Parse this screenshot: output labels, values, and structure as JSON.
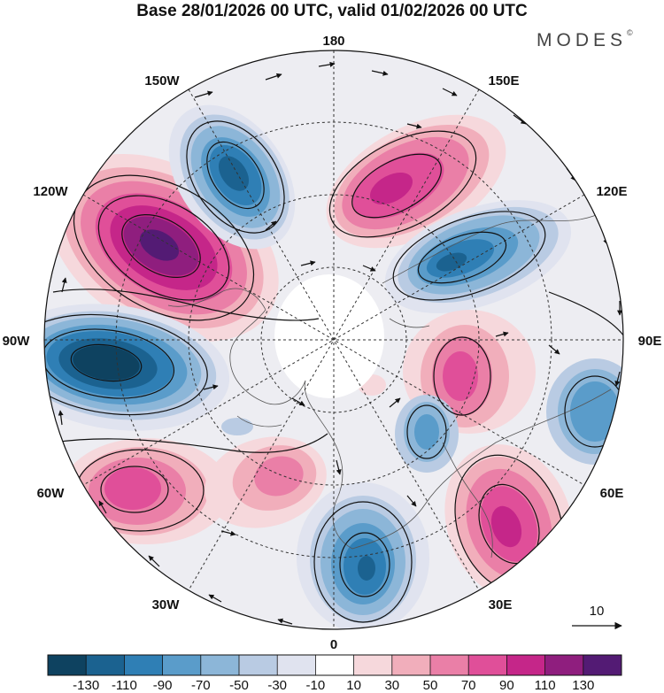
{
  "title": "Base 28/01/2026 00 UTC, valid 01/02/2026 00 UTC",
  "brand": "MODES",
  "brand_mark": "©",
  "longitude_labels": {
    "top": "180",
    "top_left": "150W",
    "top_right": "150E",
    "upper_left": "120W",
    "upper_right": "120E",
    "left": "90W",
    "right": "90E",
    "lower_left": "60W",
    "lower_right": "60E",
    "bottom_left": "30W",
    "bottom_right": "30E",
    "bottom": "0"
  },
  "vector_reference": {
    "value": "10"
  },
  "colorbar": {
    "ticks": [
      "-130",
      "-110",
      "-90",
      "-70",
      "-50",
      "-30",
      "-10",
      "10",
      "30",
      "50",
      "70",
      "90",
      "110",
      "130"
    ],
    "colors": [
      "#0e4260",
      "#1b6290",
      "#2f7fb5",
      "#5a9cca",
      "#8cb6d8",
      "#b9cbe3",
      "#e0e3ef",
      "#ffffff",
      "#f6d8dc",
      "#f1aebb",
      "#ea7fa7",
      "#e04f99",
      "#c52689",
      "#8f1e7e",
      "#531b74"
    ]
  },
  "anomaly_centres": [
    {
      "sign": "positive",
      "value": 130,
      "bearing": "120W"
    },
    {
      "sign": "negative",
      "value": -130,
      "bearing": "90W"
    },
    {
      "sign": "negative",
      "value": -90,
      "bearing": "150W"
    },
    {
      "sign": "positive",
      "value": 90,
      "bearing": "165E"
    },
    {
      "sign": "negative",
      "value": -90,
      "bearing": "120E"
    },
    {
      "sign": "positive",
      "value": 70,
      "bearing": "80E"
    },
    {
      "sign": "negative",
      "value": -70,
      "bearing": "70E"
    },
    {
      "sign": "negative",
      "value": -50,
      "bearing": "45E"
    },
    {
      "sign": "positive",
      "value": 90,
      "bearing": "40E"
    },
    {
      "sign": "negative",
      "value": -90,
      "bearing": "10E"
    },
    {
      "sign": "positive",
      "value": 90,
      "bearing": "55W"
    },
    {
      "sign": "positive",
      "value": 70,
      "bearing": "35W"
    }
  ]
}
